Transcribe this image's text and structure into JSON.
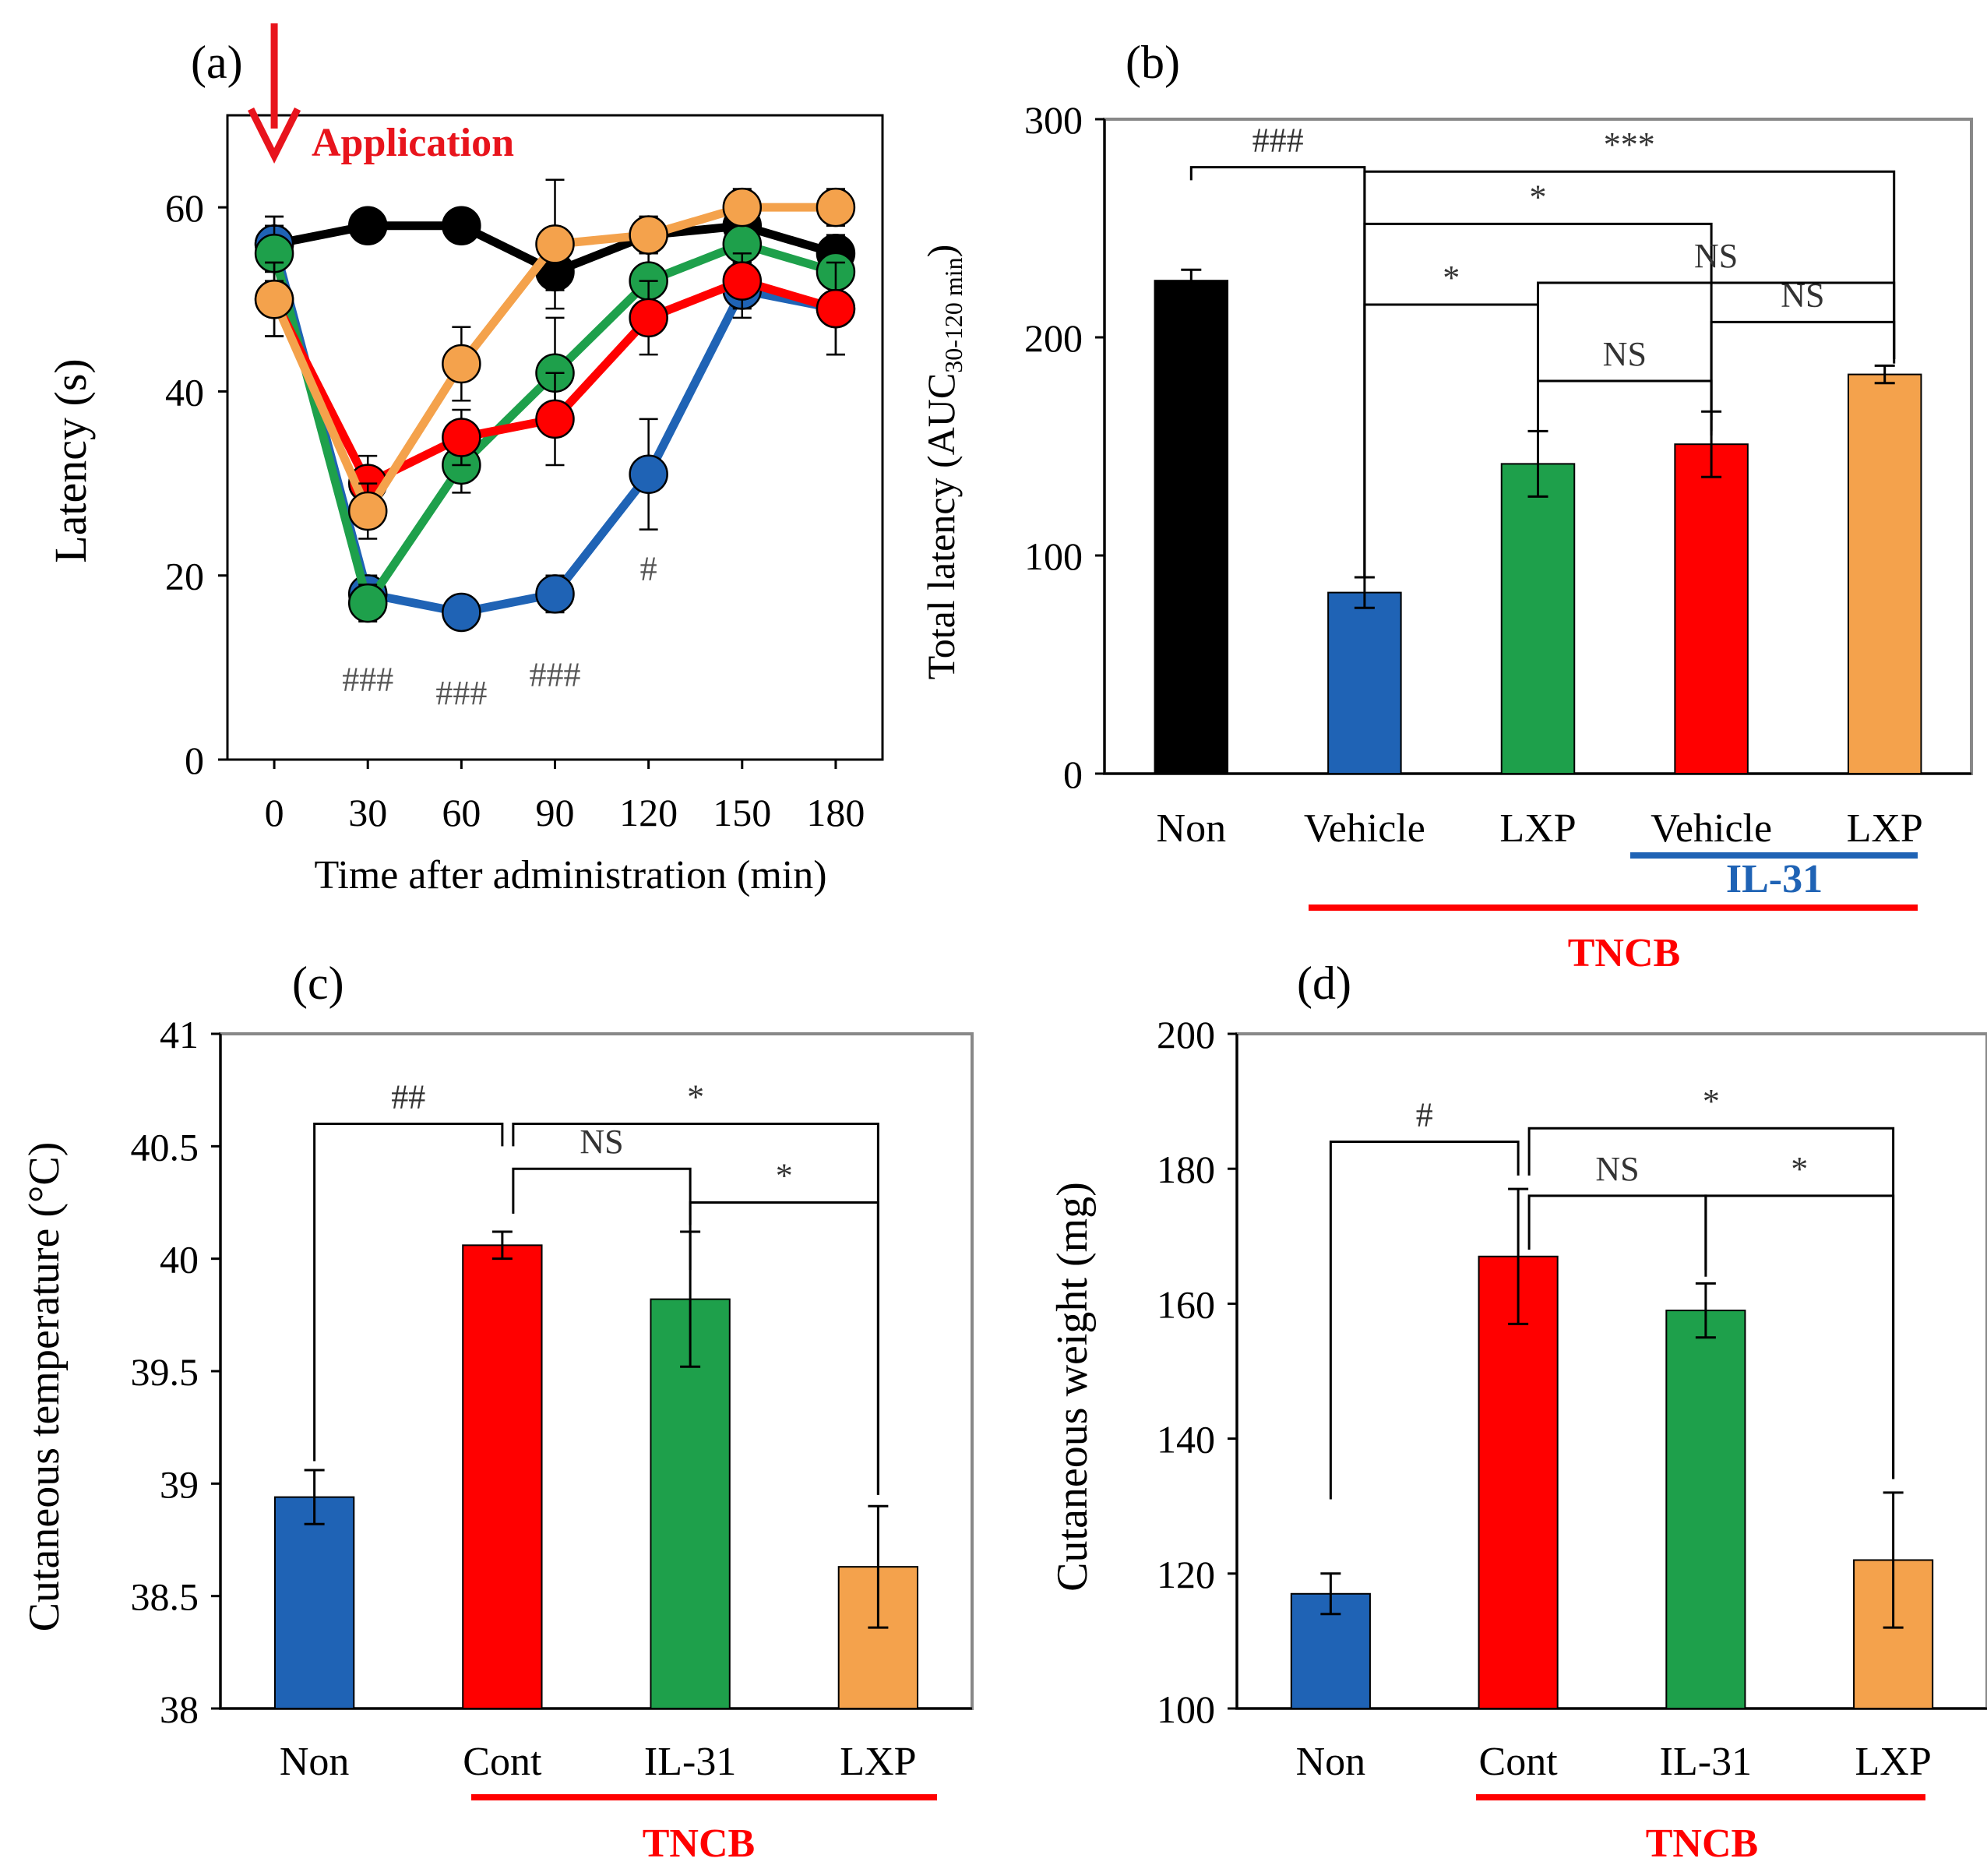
{
  "chart_data": [
    {
      "panel_label": "(a)",
      "type": "line",
      "annotation": "Application",
      "xlabel": "Time  after administration (min)",
      "ylabel": "Latency (s)",
      "x": [
        0,
        30,
        60,
        90,
        120,
        150,
        180
      ],
      "x_ticks": [
        "0",
        "30",
        "60",
        "90",
        "120",
        "150",
        "180"
      ],
      "xlim": [
        -15,
        195
      ],
      "ylim": [
        0,
        70
      ],
      "y_ticks": [
        "0",
        "20",
        "40",
        "60"
      ],
      "y_tick_values": [
        0,
        20,
        40,
        60
      ],
      "series": [
        {
          "name": "Non",
          "color": "#000000",
          "values": [
            56,
            58,
            58,
            53,
            57,
            58,
            55
          ],
          "errors": [
            3,
            1,
            1,
            2,
            2,
            1,
            2
          ]
        },
        {
          "name": "TNCB Vehicle",
          "color": "#1f63b5",
          "values": [
            56,
            18,
            16,
            18,
            31,
            51,
            49
          ],
          "errors": [
            3,
            2,
            1,
            2,
            6,
            3,
            5
          ]
        },
        {
          "name": "TNCB LXP",
          "color": "#1ea04b",
          "values": [
            55,
            17,
            32,
            42,
            52,
            56,
            53
          ],
          "errors": [
            3,
            2,
            3,
            6,
            3,
            2,
            3
          ]
        },
        {
          "name": "TNCB IL-31 Vehicle",
          "color": "#ff0000",
          "values": [
            50,
            30,
            35,
            37,
            48,
            52,
            49
          ],
          "errors": [
            4,
            3,
            3,
            5,
            4,
            3,
            5
          ]
        },
        {
          "name": "TNCB IL-31 LXP",
          "color": "#f4a24c",
          "values": [
            50,
            27,
            43,
            56,
            57,
            60,
            60
          ],
          "errors": [
            4,
            3,
            4,
            7,
            2,
            2,
            2
          ]
        }
      ],
      "significance_marks": [
        {
          "text": "###",
          "x": 30,
          "y": 7.5
        },
        {
          "text": "###",
          "x": 60,
          "y": 6
        },
        {
          "text": "###",
          "x": 90,
          "y": 8
        },
        {
          "text": "#",
          "x": 120,
          "y": 19.5
        }
      ]
    },
    {
      "panel_label": "(b)",
      "type": "bar",
      "ylabel": "Total latency (AUC",
      "ylabel_subscript": "30-120 min",
      "ylabel_close": ")",
      "categories": [
        "Non",
        "Vehicle",
        "LXP",
        "Vehicle",
        "LXP"
      ],
      "values": [
        226,
        83,
        142,
        151,
        183
      ],
      "errors": [
        5,
        7,
        15,
        15,
        4
      ],
      "colors": [
        "#000000",
        "#1f63b5",
        "#1ea04b",
        "#ff0000",
        "#f4a24c"
      ],
      "ylim": [
        0,
        300
      ],
      "y_ticks": [
        "0",
        "100",
        "200",
        "300"
      ],
      "y_tick_values": [
        0,
        100,
        200,
        300
      ],
      "group_labels": [
        "IL-31",
        "TNCB"
      ],
      "group_colors": [
        "#1f63b5",
        "#ff0000"
      ],
      "brackets": [
        {
          "from": 0,
          "to": 1,
          "label": "###",
          "y_left": 272,
          "y_right": 90,
          "y_top": 278
        },
        {
          "from": 1,
          "to": 4,
          "label": "***",
          "y_left": 90,
          "y_right": 188,
          "y_top": 276
        },
        {
          "from": 1,
          "to": 3,
          "label": "*",
          "y_left": 90,
          "y_right": 155,
          "y_top": 252
        },
        {
          "from": 1,
          "to": 2,
          "label": "*",
          "y_left": 90,
          "y_right": 157,
          "y_top": 215
        },
        {
          "from": 2,
          "to": 4,
          "label": "NS",
          "y_left": 157,
          "y_right": 190,
          "y_top": 225
        },
        {
          "from": 2,
          "to": 3,
          "label": "NS",
          "y_left": 157,
          "y_right": 162,
          "y_top": 180
        },
        {
          "from": 3,
          "to": 4,
          "label": "NS",
          "y_left": 157,
          "y_right": 190,
          "y_top": 207
        }
      ]
    },
    {
      "panel_label": "(c)",
      "type": "bar",
      "ylabel": "Cutaneous temperature (°C)",
      "categories": [
        "Non",
        "Cont",
        "IL-31",
        "LXP"
      ],
      "values": [
        38.94,
        40.06,
        39.82,
        38.63
      ],
      "errors": [
        0.12,
        0.06,
        0.3,
        0.27
      ],
      "colors": [
        "#1f63b5",
        "#ff0000",
        "#1ea04b",
        "#f4a24c"
      ],
      "ylim": [
        38,
        41
      ],
      "y_ticks": [
        "38",
        "38.5",
        "39",
        "39.5",
        "40",
        "40.5",
        "41"
      ],
      "y_tick_values": [
        38,
        38.5,
        39,
        39.5,
        40,
        40.5,
        41
      ],
      "group_labels": [
        "TNCB"
      ],
      "group_colors": [
        "#ff0000"
      ],
      "brackets": [
        {
          "from": 0,
          "to": 1,
          "label": "##",
          "y_left": 39.1,
          "y_right": 40.5,
          "y_top": 40.6
        },
        {
          "from": 1,
          "to": 3,
          "label": "*",
          "y_left": 40.5,
          "y_right": 38.95,
          "y_top": 40.6
        },
        {
          "from": 1,
          "to": 2,
          "label": "NS",
          "y_left": 40.2,
          "y_right": 40.15,
          "y_top": 40.4
        },
        {
          "from": 2,
          "to": 3,
          "label": "*",
          "y_left": 39.95,
          "y_right": 38.95,
          "y_top": 40.25
        }
      ]
    },
    {
      "panel_label": "(d)",
      "type": "bar",
      "ylabel": "Cutaneous weight  (mg)",
      "categories": [
        "Non",
        "Cont",
        "IL-31",
        "LXP"
      ],
      "values": [
        117,
        167,
        159,
        122
      ],
      "errors": [
        3,
        10,
        4,
        10
      ],
      "colors": [
        "#1f63b5",
        "#ff0000",
        "#1ea04b",
        "#f4a24c"
      ],
      "ylim": [
        100,
        200
      ],
      "y_ticks": [
        "100",
        "120",
        "140",
        "160",
        "180",
        "200"
      ],
      "y_tick_values": [
        100,
        120,
        140,
        160,
        180,
        200
      ],
      "group_labels": [
        "TNCB"
      ],
      "group_colors": [
        "#ff0000"
      ],
      "brackets": [
        {
          "from": 0,
          "to": 1,
          "label": "#",
          "y_left": 131,
          "y_right": 179,
          "y_top": 184
        },
        {
          "from": 1,
          "to": 3,
          "label": "*",
          "y_left": 179,
          "y_right": 134,
          "y_top": 186
        },
        {
          "from": 1,
          "to": 2,
          "label": "NS",
          "y_left": 168,
          "y_right": 164,
          "y_top": 176
        },
        {
          "from": 2,
          "to": 3,
          "label": "*",
          "y_left": 165,
          "y_right": 134,
          "y_top": 176
        }
      ]
    }
  ]
}
